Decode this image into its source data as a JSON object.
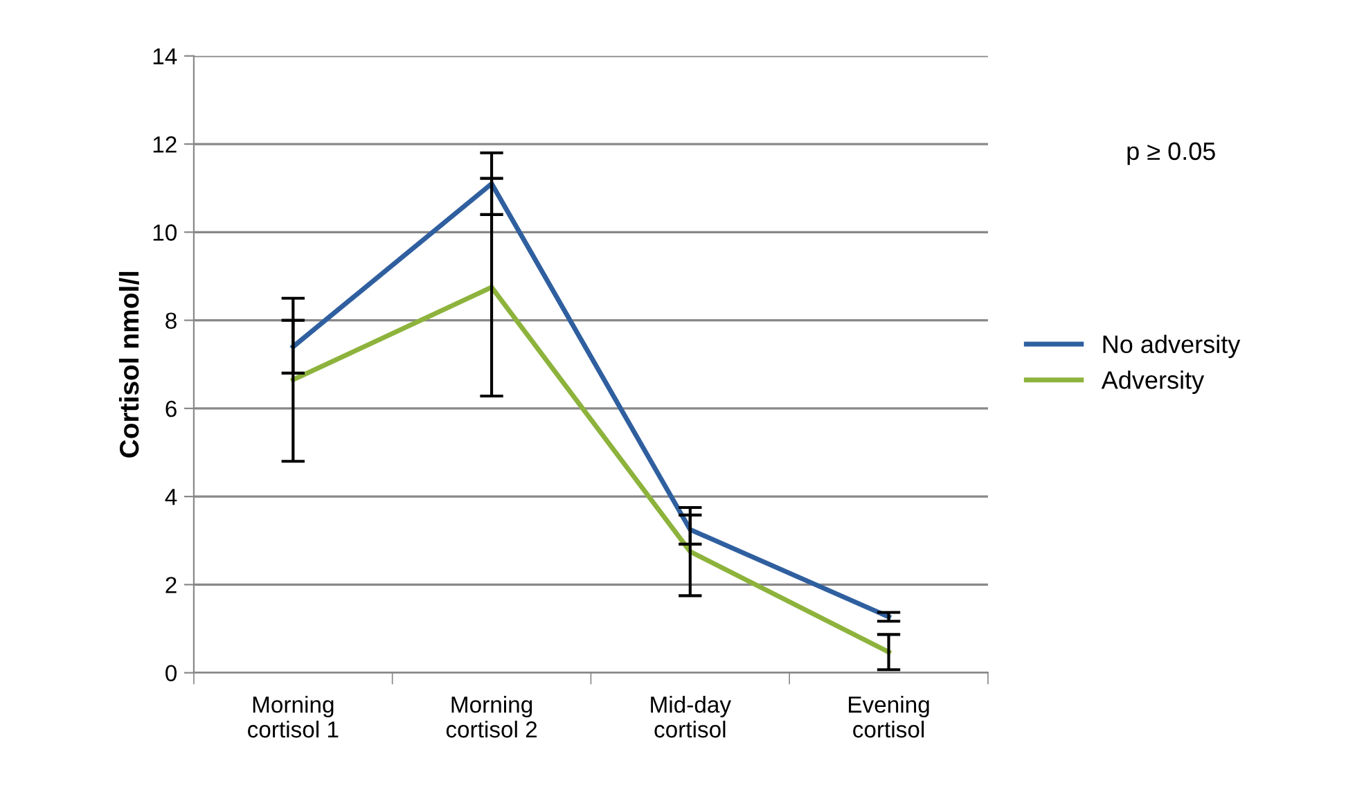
{
  "chart_data": {
    "type": "line",
    "ylabel": "Cortisol nmol/l",
    "categories": [
      "Morning\ncortisol 1",
      "Morning\ncortisol 2",
      "Mid-day\ncortisol",
      "Evening\ncortisol"
    ],
    "series": [
      {
        "name": "No adversity",
        "color": "#2f5f9f",
        "values": [
          7.4,
          11.1,
          3.25,
          1.27
        ],
        "errors": [
          0.6,
          0.7,
          0.33,
          0.1
        ]
      },
      {
        "name": "Adversity",
        "color": "#8db33c",
        "values": [
          6.65,
          8.75,
          2.75,
          0.47
        ],
        "errors": [
          1.85,
          2.47,
          1.0,
          0.4
        ]
      }
    ],
    "ylim": [
      0,
      14
    ],
    "yticks": [
      0,
      2,
      4,
      6,
      8,
      10,
      12,
      14
    ],
    "grid": "y",
    "legend": "right",
    "marker": "none",
    "line_style": "solid",
    "annotations": [
      "p ≥ 0.05"
    ]
  }
}
